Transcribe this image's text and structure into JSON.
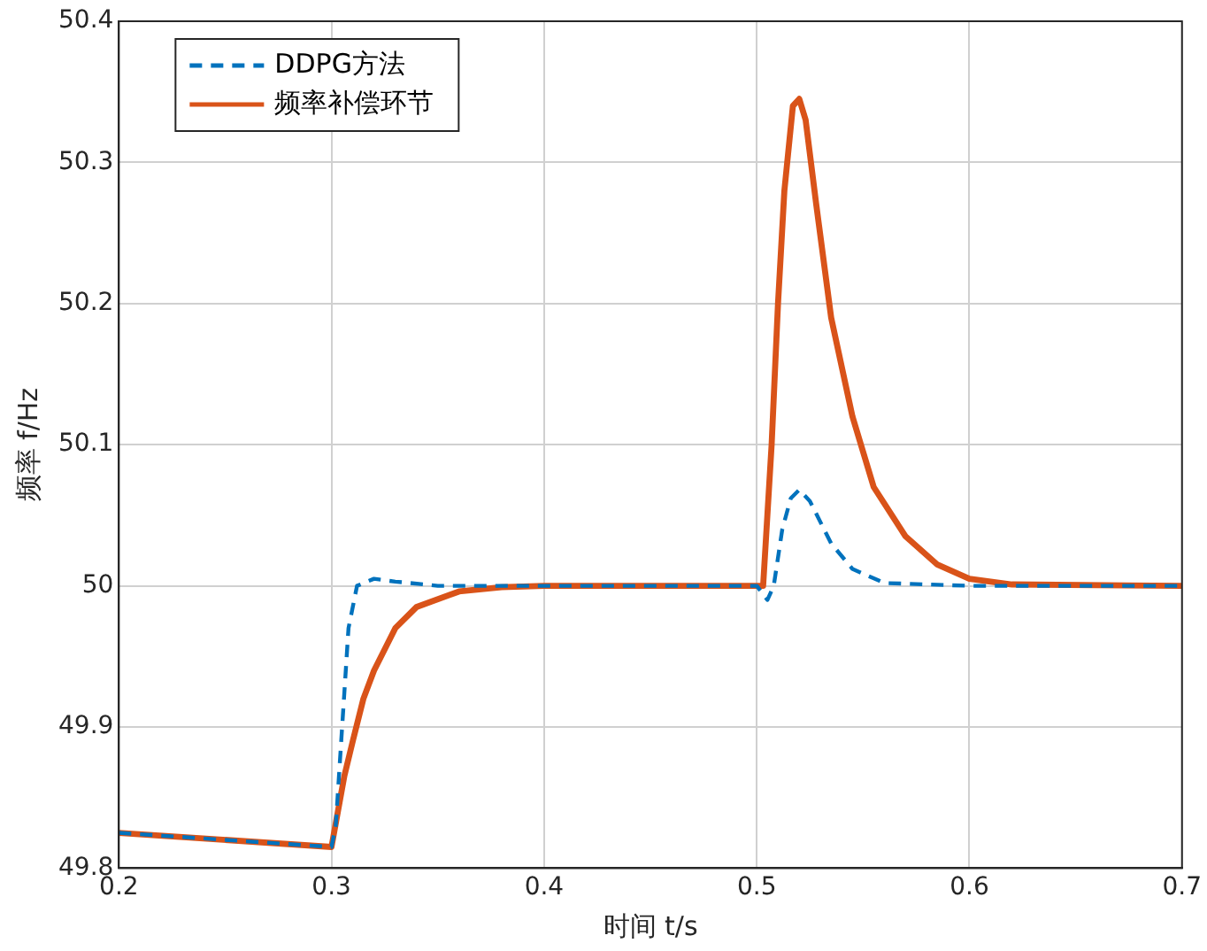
{
  "chart_data": {
    "type": "line",
    "xlabel": "时间 t/s",
    "ylabel": "频率 f/Hz",
    "xlim": [
      0.2,
      0.7
    ],
    "xticks": [
      0.2,
      0.3,
      0.4,
      0.5,
      0.6,
      0.7
    ],
    "ylim": [
      49.8,
      50.4
    ],
    "yticks": [
      49.8,
      49.9,
      50,
      50.1,
      50.2,
      50.3,
      50.4
    ],
    "grid": true,
    "legend": "top left",
    "series": [
      {
        "name": "DDPG方法",
        "color": "#0072bd",
        "line_style": "dashed",
        "x": [
          0.2,
          0.3,
          0.302,
          0.305,
          0.308,
          0.312,
          0.32,
          0.33,
          0.35,
          0.4,
          0.5,
          0.505,
          0.508,
          0.512,
          0.516,
          0.52,
          0.525,
          0.53,
          0.535,
          0.545,
          0.56,
          0.6,
          0.7
        ],
        "values": [
          49.825,
          49.815,
          49.83,
          49.9,
          49.97,
          50.0,
          50.005,
          50.003,
          50.0,
          50.0,
          50.0,
          49.99,
          50.0,
          50.04,
          50.062,
          50.068,
          50.06,
          50.045,
          50.03,
          50.012,
          50.002,
          50.0,
          50.0
        ]
      },
      {
        "name": "频率补偿环节",
        "color": "#d95319",
        "line_style": "solid",
        "x": [
          0.2,
          0.3,
          0.303,
          0.306,
          0.31,
          0.315,
          0.32,
          0.33,
          0.34,
          0.36,
          0.38,
          0.4,
          0.5,
          0.503,
          0.505,
          0.507,
          0.51,
          0.513,
          0.517,
          0.52,
          0.523,
          0.528,
          0.535,
          0.545,
          0.555,
          0.57,
          0.585,
          0.6,
          0.62,
          0.7
        ],
        "values": [
          49.825,
          49.815,
          49.84,
          49.865,
          49.89,
          49.92,
          49.94,
          49.97,
          49.985,
          49.996,
          49.999,
          50.0,
          50.0,
          50.0,
          50.05,
          50.1,
          50.2,
          50.28,
          50.34,
          50.345,
          50.33,
          50.27,
          50.19,
          50.12,
          50.07,
          50.035,
          50.015,
          50.005,
          50.001,
          50.0
        ]
      }
    ]
  }
}
